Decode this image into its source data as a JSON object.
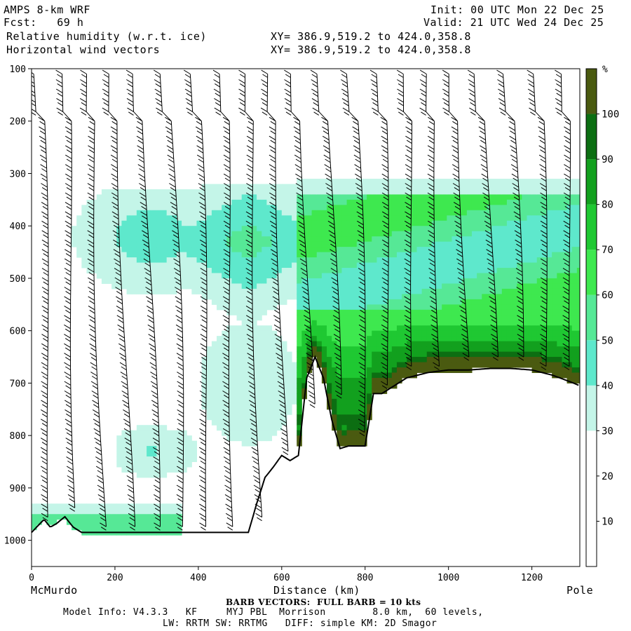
{
  "header": {
    "title": "AMPS 8-km WRF",
    "forecast": "Fcst:   69 h",
    "field1": "Relative humidity (w.r.t. ice)",
    "field2": "Horizontal wind vectors",
    "init": "Init: 00 UTC Mon 22 Dec 25",
    "valid": "Valid: 21 UTC Wed 24 Dec 25",
    "xy1": "XY= 386.9,519.2 to 424.0,358.8",
    "xy2": "XY= 386.9,519.2 to 424.0,358.8"
  },
  "footer": {
    "barb_note": "BARB VECTORS:  FULL BARB = 10 kts",
    "model_info": "Model Info: V4.3.3   KF     MYJ PBL  Morrison        8.0 km,  60 levels,",
    "model_info2": "LW: RRTM SW: RRTMG   DIFF: simple KM: 2D Smagor"
  },
  "chart_data": {
    "type": "heatmap",
    "title": "Relative humidity (w.r.t. ice)",
    "xlabel": "Distance (km)",
    "ylabel": "",
    "x_endpoints": [
      "McMurdo",
      "Pole"
    ],
    "xlim": [
      0,
      1315
    ],
    "ylim": [
      1050,
      100
    ],
    "x_ticks": [
      0,
      200,
      400,
      600,
      800,
      1000,
      1200
    ],
    "y_ticks": [
      100,
      200,
      300,
      400,
      500,
      600,
      700,
      800,
      900,
      1000
    ],
    "colorbar": {
      "unit": "%",
      "levels": [
        10,
        20,
        30,
        40,
        50,
        60,
        70,
        80,
        90,
        100
      ],
      "colors": [
        "#ffffff",
        "#ffffff",
        "#ffffff",
        "#c4f5e8",
        "#5ee8cc",
        "#56e896",
        "#3ee84f",
        "#1fc832",
        "#12a01e",
        "#0c6e12",
        "#4a5a10"
      ]
    },
    "terrain_profile": {
      "x": [
        0,
        30,
        45,
        60,
        80,
        100,
        120,
        200,
        300,
        400,
        500,
        520,
        540,
        560,
        580,
        600,
        620,
        640,
        660,
        680,
        700,
        720,
        740,
        760,
        780,
        800,
        820,
        840,
        860,
        880,
        900,
        950,
        1000,
        1050,
        1100,
        1150,
        1200,
        1250,
        1300,
        1315
      ],
      "p": [
        985,
        960,
        975,
        968,
        955,
        975,
        985,
        985,
        985,
        985,
        985,
        985,
        930,
        880,
        860,
        838,
        848,
        838,
        690,
        650,
        690,
        770,
        825,
        820,
        820,
        820,
        720,
        720,
        710,
        700,
        690,
        680,
        675,
        675,
        672,
        672,
        675,
        685,
        700,
        705
      ]
    },
    "moist_regions": [
      {
        "name": "upper layer east",
        "x": [
          640,
          1315
        ],
        "p": [
          310,
          700
        ],
        "rh": 70
      },
      {
        "name": "mid cloud",
        "x": [
          190,
          420
        ],
        "p": [
          330,
          520
        ],
        "rh": 40
      },
      {
        "name": "boundary layer",
        "x": [
          0,
          350
        ],
        "p": [
          940,
          985
        ],
        "rh": 50
      }
    ],
    "barb_note": "FULL BARB = 10 kts"
  }
}
